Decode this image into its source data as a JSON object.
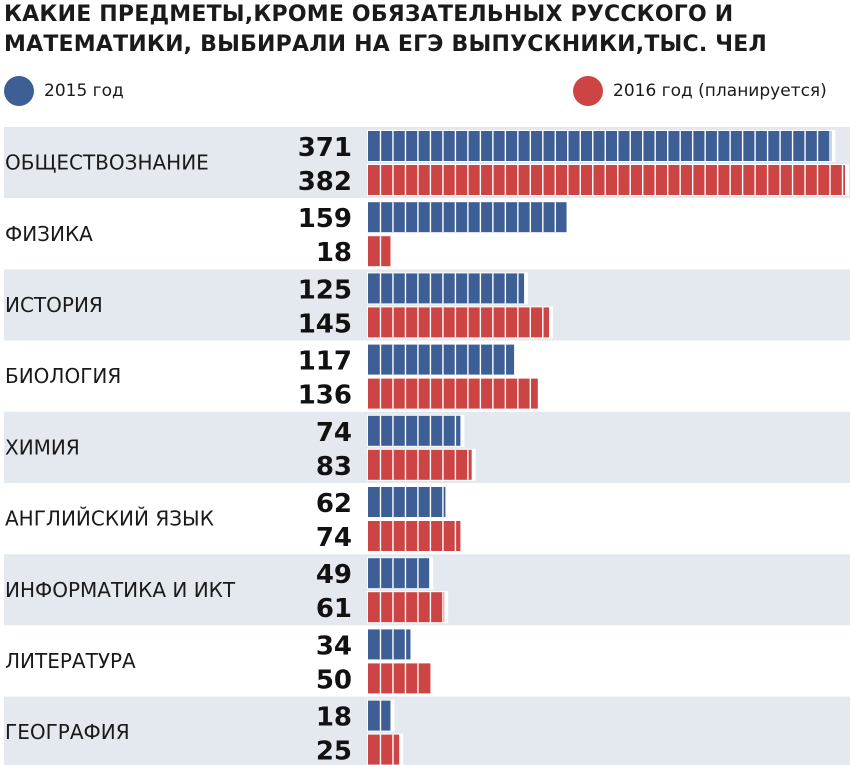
{
  "chart_data": {
    "type": "bar",
    "orientation": "horizontal",
    "title": "КАКИЕ ПРЕДМЕТЫ,КРОМЕ ОБЯЗАТЕЛЬНЫХ РУССКОГО И МАТЕМАТИКИ, ВЫБИРАЛИ НА ЕГЭ ВЫПУСКНИКИ,ТЫС. ЧЕЛ",
    "categories": [
      "ОБЩЕСТВОЗНАНИЕ",
      "ФИЗИКА",
      "ИСТОРИЯ",
      "БИОЛОГИЯ",
      "ХИМИЯ",
      "АНГЛИЙСКИЙ ЯЗЫК",
      "ИНФОРМАТИКА И ИКТ",
      "ЛИТЕРАТУРА",
      "ГЕОГРАФИЯ"
    ],
    "series": [
      {
        "name": "2015 год",
        "color": "#3e5f95",
        "values": [
          371,
          159,
          125,
          117,
          74,
          62,
          49,
          34,
          18
        ]
      },
      {
        "name": "2016 год (планируется)",
        "color": "#cc4444",
        "values": [
          382,
          18,
          145,
          136,
          83,
          74,
          61,
          50,
          25
        ]
      }
    ],
    "xlim": [
      0,
      382
    ],
    "segment_unit": 10,
    "row_band_colors": [
      "#e3e9ee",
      "#ffffff"
    ]
  }
}
